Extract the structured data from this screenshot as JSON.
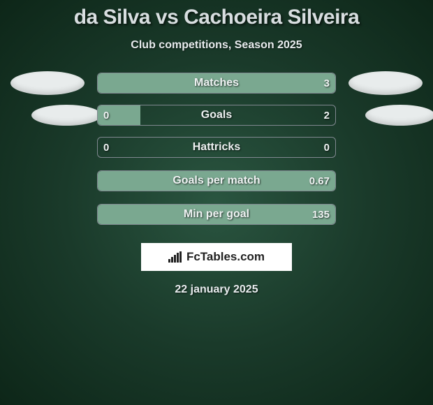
{
  "title": "da Silva vs Cachoeira Silveira",
  "subtitle": "Club competitions, Season 2025",
  "date": "22 january 2025",
  "logo_text": "FcTables.com",
  "bar_border_color": "#808890",
  "fill_color": "#7aa890",
  "rows": [
    {
      "label": "Matches",
      "left_value": "",
      "right_value": "3",
      "fill_pct": 100,
      "show_left_ellipse": true,
      "show_right_ellipse": true,
      "ellipse_offset": false
    },
    {
      "label": "Goals",
      "left_value": "0",
      "right_value": "2",
      "fill_pct": 18,
      "show_left_ellipse": true,
      "show_right_ellipse": true,
      "ellipse_offset": true
    },
    {
      "label": "Hattricks",
      "left_value": "0",
      "right_value": "0",
      "fill_pct": 0,
      "show_left_ellipse": false,
      "show_right_ellipse": false,
      "ellipse_offset": false
    },
    {
      "label": "Goals per match",
      "left_value": "",
      "right_value": "0.67",
      "fill_pct": 100,
      "show_left_ellipse": false,
      "show_right_ellipse": false,
      "ellipse_offset": false
    },
    {
      "label": "Min per goal",
      "left_value": "",
      "right_value": "135",
      "fill_pct": 100,
      "show_left_ellipse": false,
      "show_right_ellipse": false,
      "ellipse_offset": false
    }
  ]
}
